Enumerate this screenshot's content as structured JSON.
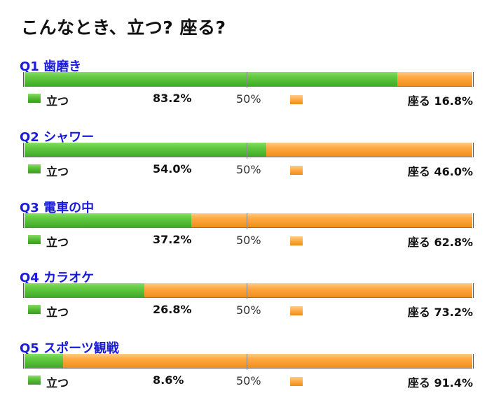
{
  "title": "こんなとき、立つ? 座る?",
  "legend": {
    "stand": "立つ",
    "sit": "座る",
    "midpoint": "50%"
  },
  "colors": {
    "stand": "#4cb832",
    "sit": "#ffa640",
    "question": "#1a1adc"
  },
  "chart_data": {
    "type": "bar",
    "orientation": "horizontal-stacked-100",
    "categories": [
      "Q1 歯磨き",
      "Q2 シャワー",
      "Q3 電車の中",
      "Q4 カラオケ",
      "Q5 スポーツ観戦"
    ],
    "series": [
      {
        "name": "立つ",
        "values": [
          83.2,
          54.0,
          37.2,
          26.8,
          8.6
        ]
      },
      {
        "name": "座る",
        "values": [
          16.8,
          46.0,
          62.8,
          73.2,
          91.4
        ]
      }
    ],
    "xlim": [
      0,
      100
    ]
  },
  "questions": [
    {
      "label": "Q1 歯磨き",
      "stand_pct": "83.2%",
      "sit_pct": "16.8%"
    },
    {
      "label": "Q2 シャワー",
      "stand_pct": "54.0%",
      "sit_pct": "46.0%"
    },
    {
      "label": "Q3 電車の中",
      "stand_pct": "37.2%",
      "sit_pct": "62.8%"
    },
    {
      "label": "Q4 カラオケ",
      "stand_pct": "26.8%",
      "sit_pct": "73.2%"
    },
    {
      "label": "Q5 スポーツ観戦",
      "stand_pct": "8.6%",
      "sit_pct": "91.4%"
    }
  ]
}
